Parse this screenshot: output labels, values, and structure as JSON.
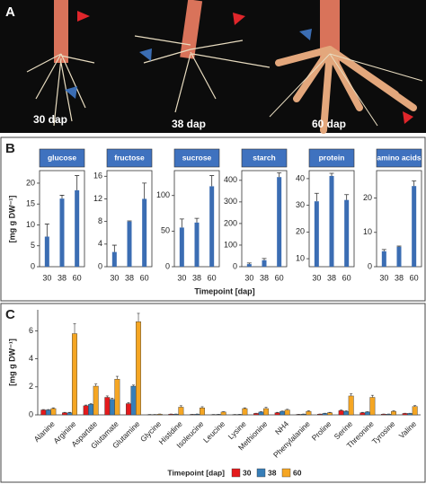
{
  "panel_a": {
    "letter": "A",
    "captions": [
      "30 dap",
      "38 dap",
      "60 dap"
    ]
  },
  "panel_b": {
    "letter": "B",
    "xlabel": "Timepoint [dap]",
    "ylabel": "[mg g DW⁻¹]"
  },
  "panel_c": {
    "letter": "C"
  },
  "chart_data": [
    {
      "type": "bar",
      "title": "glucose",
      "categories": [
        "30",
        "38",
        "60"
      ],
      "values": [
        7.2,
        16.3,
        18.3
      ],
      "errors": [
        3,
        0.8,
        3.5
      ],
      "color": "#3b6db3",
      "ylim": [
        0,
        23
      ],
      "yticks": [
        0,
        5,
        10,
        15,
        20
      ]
    },
    {
      "type": "bar",
      "title": "fructose",
      "categories": [
        "30",
        "38",
        "60"
      ],
      "values": [
        2.6,
        8.0,
        12.0
      ],
      "errors": [
        1.2,
        0.1,
        2.8
      ],
      "color": "#3b6db3",
      "ylim": [
        0,
        17
      ],
      "yticks": [
        0,
        4,
        8,
        12,
        16
      ]
    },
    {
      "type": "bar",
      "title": "sucrose",
      "categories": [
        "30",
        "38",
        "60"
      ],
      "values": [
        55,
        62,
        113
      ],
      "errors": [
        12,
        6,
        15
      ],
      "color": "#3b6db3",
      "ylim": [
        0,
        135
      ],
      "yticks": [
        0,
        50,
        100
      ]
    },
    {
      "type": "bar",
      "title": "starch",
      "categories": [
        "30",
        "38",
        "60"
      ],
      "values": [
        12,
        30,
        415
      ],
      "errors": [
        5,
        8,
        20
      ],
      "color": "#3b6db3",
      "ylim": [
        0,
        445
      ],
      "yticks": [
        0,
        100,
        200,
        300,
        400
      ]
    },
    {
      "type": "bar",
      "title": "protein",
      "categories": [
        "30",
        "38",
        "60"
      ],
      "values": [
        31.5,
        41,
        32
      ],
      "errors": [
        3,
        1,
        2
      ],
      "color": "#3b6db3",
      "ylim": [
        7,
        43
      ],
      "yticks": [
        10,
        20,
        30,
        40
      ]
    },
    {
      "type": "bar",
      "title": "amino acids",
      "categories": [
        "30",
        "38",
        "60"
      ],
      "values": [
        4.5,
        5.8,
        23.5
      ],
      "errors": [
        0.5,
        0.2,
        1.5
      ],
      "color": "#3b6db3",
      "ylim": [
        0,
        28
      ],
      "yticks": [
        0,
        10,
        20
      ]
    },
    {
      "type": "grouped_bar",
      "ylabel": "[mg g DW⁻¹]",
      "legend_title": "Timepoint [dap]",
      "categories": [
        "Alanine",
        "Arginine",
        "Aspartate",
        "Glutamate",
        "Glutamine",
        "Glycine",
        "Histidine",
        "Isoleucine",
        "Leucine",
        "Lysine",
        "Methionine",
        "NH4",
        "Phenylalanine",
        "Proline",
        "Serine",
        "Threonine",
        "Tyrosine",
        "Valine"
      ],
      "series": [
        {
          "name": "30",
          "color": "#e41a1c",
          "values": [
            0.35,
            0.15,
            0.65,
            1.25,
            0.8,
            0.02,
            0.05,
            0.03,
            0.02,
            0.02,
            0.1,
            0.15,
            0.03,
            0.05,
            0.3,
            0.15,
            0.05,
            0.1
          ],
          "errors": [
            0.03,
            0.03,
            0.05,
            0.1,
            0.08,
            0.01,
            0.01,
            0.01,
            0.01,
            0.01,
            0.02,
            0.03,
            0.01,
            0.01,
            0.05,
            0.03,
            0.01,
            0.02
          ]
        },
        {
          "name": "38",
          "color": "#377eb8",
          "values": [
            0.35,
            0.15,
            0.75,
            1.1,
            2.05,
            0.02,
            0.05,
            0.05,
            0.03,
            0.03,
            0.2,
            0.25,
            0.05,
            0.1,
            0.25,
            0.2,
            0.05,
            0.1
          ],
          "errors": [
            0.03,
            0.03,
            0.05,
            0.1,
            0.08,
            0.01,
            0.01,
            0.01,
            0.01,
            0.01,
            0.03,
            0.03,
            0.01,
            0.02,
            0.04,
            0.03,
            0.01,
            0.02
          ]
        },
        {
          "name": "60",
          "color": "#f5a623",
          "values": [
            0.45,
            5.8,
            2.05,
            2.55,
            6.65,
            0.05,
            0.55,
            0.5,
            0.2,
            0.45,
            0.45,
            0.35,
            0.25,
            0.15,
            1.35,
            1.25,
            0.25,
            0.6
          ],
          "errors": [
            0.05,
            0.7,
            0.15,
            0.2,
            0.6,
            0.01,
            0.1,
            0.08,
            0.03,
            0.05,
            0.08,
            0.05,
            0.04,
            0.03,
            0.15,
            0.15,
            0.04,
            0.06
          ]
        }
      ],
      "ylim": [
        0,
        7.5
      ],
      "yticks": [
        0,
        2,
        4,
        6
      ]
    }
  ]
}
